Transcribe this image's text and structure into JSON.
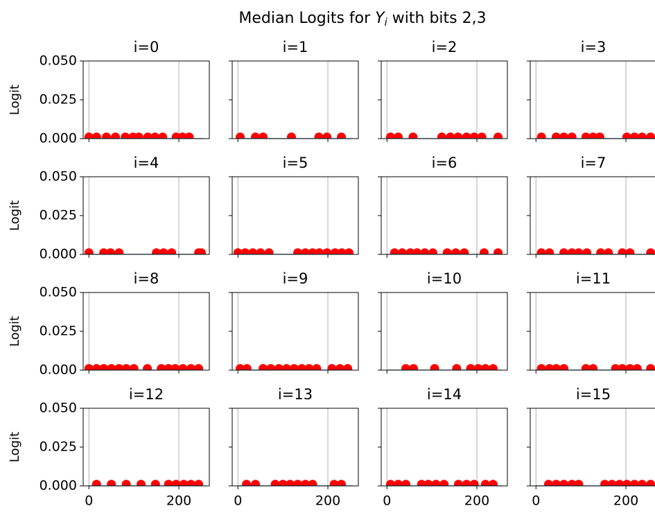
{
  "title": [
    "Median Logits for ",
    "Y",
    "i",
    " with bits 2,3"
  ],
  "chart_data": [
    {
      "type": "scatter",
      "title": "i=0",
      "ylabel": "Logit",
      "xlim": [
        -12.75,
        267.75
      ],
      "ylim": [
        0,
        0.05
      ],
      "xticks": [
        0,
        200
      ],
      "yticks": [
        {
          "value": 0,
          "label": "0.000"
        },
        {
          "value": 0.025,
          "label": "0.025"
        },
        {
          "value": 0.05,
          "label": "0.050"
        }
      ],
      "grid": "x",
      "points": {
        "color": "#ff0000",
        "x": [
          0,
          17,
          39,
          59,
          81,
          98,
          111,
          131,
          147,
          164,
          194,
          208,
          223
        ],
        "y": [
          0.001,
          0.001,
          0.001,
          0.001,
          0.001,
          0.001,
          0.001,
          0.001,
          0.001,
          0.001,
          0.001,
          0.001,
          0.001
        ]
      },
      "line": {
        "color": "#1f77b4",
        "x": [
          0,
          255
        ],
        "y": [
          0,
          0
        ]
      }
    },
    {
      "type": "scatter",
      "title": "i=1",
      "xlim": [
        -12.75,
        267.75
      ],
      "ylim": [
        0,
        0.05
      ],
      "xticks": [
        0,
        200
      ],
      "yticks": [
        0,
        0.025,
        0.05
      ],
      "grid": "x",
      "points": {
        "color": "#ff0000",
        "x": [
          5,
          39,
          56,
          119,
          180,
          198,
          230
        ],
        "y": [
          0.001,
          0.001,
          0.001,
          0.001,
          0.001,
          0.001,
          0.001
        ]
      },
      "line": {
        "color": "#1f77b4",
        "x": [
          0,
          255
        ],
        "y": [
          0,
          0
        ]
      }
    },
    {
      "type": "scatter",
      "title": "i=2",
      "xlim": [
        -12.75,
        267.75
      ],
      "ylim": [
        0,
        0.05
      ],
      "xticks": [
        0,
        200
      ],
      "yticks": [
        0,
        0.025,
        0.05
      ],
      "grid": "x",
      "points": {
        "color": "#ff0000",
        "x": [
          8,
          25,
          58,
          122,
          141,
          158,
          177,
          194,
          211,
          247
        ],
        "y": [
          0.001,
          0.001,
          0.001,
          0.001,
          0.001,
          0.001,
          0.001,
          0.001,
          0.001,
          0.001
        ]
      },
      "line": {
        "color": "#1f77b4",
        "x": [
          0,
          255
        ],
        "y": [
          0,
          0
        ]
      }
    },
    {
      "type": "scatter",
      "title": "i=3",
      "xlim": [
        -12.75,
        267.75
      ],
      "ylim": [
        0,
        0.05
      ],
      "xticks": [
        0,
        200
      ],
      "yticks": [
        0,
        0.025,
        0.05
      ],
      "grid": "x",
      "points": {
        "color": "#ff0000",
        "x": [
          12,
          45,
          62,
          80,
          111,
          127,
          142,
          202,
          219,
          236,
          255
        ],
        "y": [
          0.001,
          0.001,
          0.001,
          0.001,
          0.001,
          0.001,
          0.001,
          0.001,
          0.001,
          0.001,
          0.001
        ]
      },
      "line": {
        "color": "#1f77b4",
        "x": [
          0,
          255
        ],
        "y": [
          0,
          0
        ]
      }
    },
    {
      "type": "scatter",
      "title": "i=4",
      "ylabel": "Logit",
      "xlim": [
        -12.75,
        267.75
      ],
      "ylim": [
        0,
        0.05
      ],
      "xticks": [
        0,
        200
      ],
      "yticks": [
        {
          "value": 0,
          "label": "0.000"
        },
        {
          "value": 0.025,
          "label": "0.025"
        },
        {
          "value": 0.05,
          "label": "0.050"
        }
      ],
      "grid": "x",
      "points": {
        "color": "#ff0000",
        "x": [
          0,
          33,
          48,
          67,
          150,
          166,
          184,
          244,
          250
        ],
        "y": [
          0.001,
          0.001,
          0.001,
          0.001,
          0.001,
          0.001,
          0.001,
          0.001,
          0.001
        ]
      },
      "line": {
        "color": "#1f77b4",
        "x": [
          0,
          255
        ],
        "y": [
          0,
          0
        ]
      }
    },
    {
      "type": "scatter",
      "title": "i=5",
      "xlim": [
        -12.75,
        267.75
      ],
      "ylim": [
        0,
        0.05
      ],
      "xticks": [
        0,
        200
      ],
      "yticks": [
        0,
        0.025,
        0.05
      ],
      "grid": "x",
      "points": {
        "color": "#ff0000",
        "x": [
          0,
          16,
          33,
          50,
          69,
          133,
          150,
          166,
          181,
          198,
          216,
          231,
          247
        ],
        "y": [
          0.001,
          0.001,
          0.001,
          0.001,
          0.001,
          0.001,
          0.001,
          0.001,
          0.001,
          0.001,
          0.001,
          0.001,
          0.001
        ]
      },
      "line": {
        "color": "#1f77b4",
        "x": [
          0,
          255
        ],
        "y": [
          0,
          0
        ]
      }
    },
    {
      "type": "scatter",
      "title": "i=6",
      "xlim": [
        -12.75,
        267.75
      ],
      "ylim": [
        0,
        0.05
      ],
      "xticks": [
        0,
        200
      ],
      "yticks": [
        0,
        0.025,
        0.05
      ],
      "grid": "x",
      "points": {
        "color": "#ff0000",
        "x": [
          17,
          34,
          52,
          67,
          84,
          102,
          134,
          153,
          172,
          216,
          247
        ],
        "y": [
          0.001,
          0.001,
          0.001,
          0.001,
          0.001,
          0.001,
          0.001,
          0.001,
          0.001,
          0.001,
          0.001
        ]
      },
      "line": {
        "color": "#1f77b4",
        "x": [
          0,
          255
        ],
        "y": [
          0,
          0
        ]
      }
    },
    {
      "type": "scatter",
      "title": "i=7",
      "xlim": [
        -12.75,
        267.75
      ],
      "ylim": [
        0,
        0.05
      ],
      "xticks": [
        0,
        200
      ],
      "yticks": [
        0,
        0.025,
        0.05
      ],
      "grid": "x",
      "points": {
        "color": "#ff0000",
        "x": [
          12,
          30,
          62,
          80,
          95,
          113,
          144,
          161,
          192,
          209,
          255
        ],
        "y": [
          0.001,
          0.001,
          0.001,
          0.001,
          0.001,
          0.001,
          0.001,
          0.001,
          0.001,
          0.001,
          0.001
        ]
      },
      "line": {
        "color": "#1f77b4",
        "x": [
          0,
          255
        ],
        "y": [
          0,
          0
        ]
      }
    },
    {
      "type": "scatter",
      "title": "i=8",
      "ylabel": "Logit",
      "xlim": [
        -12.75,
        267.75
      ],
      "ylim": [
        0,
        0.05
      ],
      "xticks": [
        0,
        200
      ],
      "yticks": [
        {
          "value": 0,
          "label": "0.000"
        },
        {
          "value": 0.025,
          "label": "0.025"
        },
        {
          "value": 0.05,
          "label": "0.050"
        }
      ],
      "grid": "x",
      "points": {
        "color": "#ff0000",
        "x": [
          0,
          17,
          33,
          50,
          67,
          83,
          100,
          130,
          161,
          177,
          192,
          209,
          227,
          244
        ],
        "y": [
          0.001,
          0.001,
          0.001,
          0.001,
          0.001,
          0.001,
          0.001,
          0.001,
          0.001,
          0.001,
          0.001,
          0.001,
          0.001,
          0.001
        ]
      },
      "line": {
        "color": "#1f77b4",
        "x": [
          0,
          255
        ],
        "y": [
          0,
          0
        ]
      }
    },
    {
      "type": "scatter",
      "title": "i=9",
      "xlim": [
        -12.75,
        267.75
      ],
      "ylim": [
        0,
        0.05
      ],
      "xticks": [
        0,
        200
      ],
      "yticks": [
        0,
        0.025,
        0.05
      ],
      "grid": "x",
      "points": {
        "color": "#ff0000",
        "x": [
          5,
          20,
          56,
          73,
          91,
          108,
          125,
          142,
          158,
          175,
          209,
          227,
          244
        ],
        "y": [
          0.001,
          0.001,
          0.001,
          0.001,
          0.001,
          0.001,
          0.001,
          0.001,
          0.001,
          0.001,
          0.001,
          0.001,
          0.001
        ]
      },
      "line": {
        "color": "#1f77b4",
        "x": [
          0,
          255
        ],
        "y": [
          0,
          0
        ]
      }
    },
    {
      "type": "scatter",
      "title": "i=10",
      "xlim": [
        -12.75,
        267.75
      ],
      "ylim": [
        0,
        0.05
      ],
      "xticks": [
        0,
        200
      ],
      "yticks": [
        0,
        0.025,
        0.05
      ],
      "grid": "x",
      "points": {
        "color": "#ff0000",
        "x": [
          42,
          59,
          106,
          155,
          186,
          203,
          219,
          236
        ],
        "y": [
          0.001,
          0.001,
          0.001,
          0.001,
          0.001,
          0.001,
          0.001,
          0.001
        ]
      },
      "line": {
        "color": "#1f77b4",
        "x": [
          0,
          255
        ],
        "y": [
          0,
          0
        ]
      }
    },
    {
      "type": "scatter",
      "title": "i=11",
      "xlim": [
        -12.75,
        267.75
      ],
      "ylim": [
        0,
        0.05
      ],
      "xticks": [
        0,
        200
      ],
      "yticks": [
        0,
        0.025,
        0.05
      ],
      "grid": "x",
      "points": {
        "color": "#ff0000",
        "x": [
          12,
          30,
          45,
          62,
          111,
          127,
          177,
          192,
          209,
          225,
          255
        ],
        "y": [
          0.001,
          0.001,
          0.001,
          0.001,
          0.001,
          0.001,
          0.001,
          0.001,
          0.001,
          0.001,
          0.001
        ]
      },
      "line": {
        "color": "#1f77b4",
        "x": [
          0,
          255
        ],
        "y": [
          0,
          0
        ]
      }
    },
    {
      "type": "scatter",
      "title": "i=12",
      "ylabel": "Logit",
      "xlim": [
        -12.75,
        267.75
      ],
      "ylim": [
        0,
        0.05
      ],
      "xticks": [
        0,
        200
      ],
      "xtick_labels": true,
      "yticks": [
        {
          "value": 0,
          "label": "0.000"
        },
        {
          "value": 0.025,
          "label": "0.025"
        },
        {
          "value": 0.05,
          "label": "0.050"
        }
      ],
      "grid": "x",
      "points": {
        "color": "#ff0000",
        "x": [
          17,
          50,
          83,
          116,
          148,
          177,
          194,
          211,
          227,
          244
        ],
        "y": [
          0.001,
          0.001,
          0.001,
          0.001,
          0.001,
          0.001,
          0.001,
          0.001,
          0.001,
          0.001
        ]
      },
      "line": {
        "color": "#1f77b4",
        "x": [
          0,
          255
        ],
        "y": [
          0,
          0
        ]
      }
    },
    {
      "type": "scatter",
      "title": "i=13",
      "xlim": [
        -12.75,
        267.75
      ],
      "ylim": [
        0,
        0.05
      ],
      "xticks": [
        0,
        200
      ],
      "xtick_labels": true,
      "yticks": [
        0,
        0.025,
        0.05
      ],
      "grid": "x",
      "points": {
        "color": "#ff0000",
        "x": [
          19,
          39,
          83,
          100,
          116,
          133,
          150,
          166,
          214,
          230
        ],
        "y": [
          0.001,
          0.001,
          0.001,
          0.001,
          0.001,
          0.001,
          0.001,
          0.001,
          0.001,
          0.001
        ]
      },
      "line": {
        "color": "#1f77b4",
        "x": [
          0,
          255
        ],
        "y": [
          0,
          0
        ]
      }
    },
    {
      "type": "scatter",
      "title": "i=14",
      "xlim": [
        -12.75,
        267.75
      ],
      "ylim": [
        0,
        0.05
      ],
      "xticks": [
        0,
        200
      ],
      "xtick_labels": true,
      "yticks": [
        0,
        0.025,
        0.05
      ],
      "grid": "x",
      "points": {
        "color": "#ff0000",
        "x": [
          8,
          25,
          42,
          77,
          92,
          109,
          127,
          159,
          177,
          194,
          219,
          236
        ],
        "y": [
          0.001,
          0.001,
          0.001,
          0.001,
          0.001,
          0.001,
          0.001,
          0.001,
          0.001,
          0.001,
          0.001,
          0.001
        ]
      },
      "line": {
        "color": "#1f77b4",
        "x": [
          0,
          255
        ],
        "y": [
          0,
          0
        ]
      }
    },
    {
      "type": "scatter",
      "title": "i=15",
      "xlim": [
        -12.75,
        267.75
      ],
      "ylim": [
        0,
        0.05
      ],
      "xticks": [
        0,
        200
      ],
      "xtick_labels": true,
      "yticks": [
        0,
        0.025,
        0.05
      ],
      "grid": "x",
      "points": {
        "color": "#ff0000",
        "x": [
          28,
          45,
          62,
          80,
          95,
          153,
          169,
          186,
          202,
          219,
          236,
          255
        ],
        "y": [
          0.001,
          0.001,
          0.001,
          0.001,
          0.001,
          0.001,
          0.001,
          0.001,
          0.001,
          0.001,
          0.001,
          0.001
        ]
      },
      "line": {
        "color": "#1f77b4",
        "x": [
          0,
          255
        ],
        "y": [
          0,
          0
        ]
      }
    }
  ]
}
